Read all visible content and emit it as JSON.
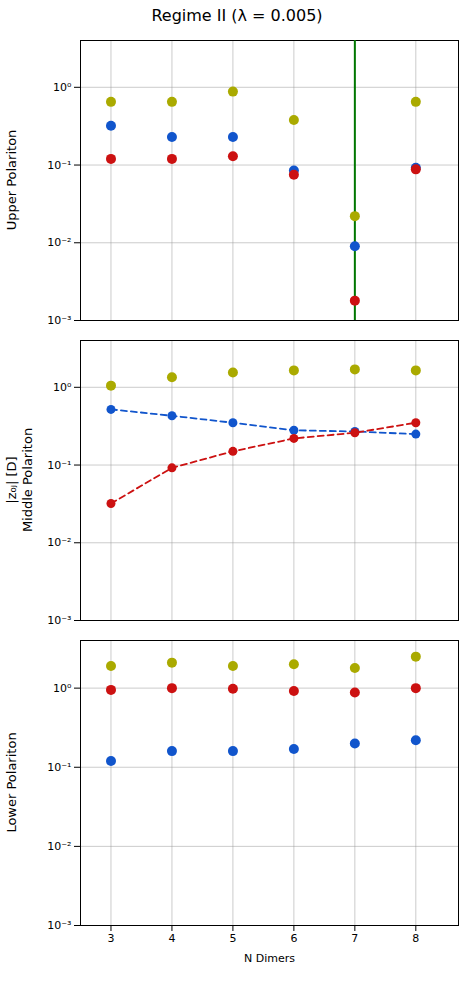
{
  "chart_data": [
    {
      "type": "scatter",
      "title": "Regime II (λ = 0.005)",
      "ylabel": "Upper Polariton",
      "x": [
        3,
        4,
        5,
        6,
        7,
        8
      ],
      "series": [
        {
          "type": "scatter",
          "marker": "o",
          "color": "#aaaa00",
          "values": [
            0.65,
            0.65,
            0.88,
            0.38,
            0.022,
            0.65
          ]
        },
        {
          "type": "scatter",
          "marker": "o",
          "color": "#1155cc",
          "values": [
            0.32,
            0.23,
            0.23,
            0.085,
            0.009,
            0.092
          ]
        },
        {
          "type": "scatter",
          "marker": "o",
          "color": "#cc1111",
          "values": [
            0.12,
            0.12,
            0.13,
            0.075,
            0.0018,
            0.088
          ]
        }
      ],
      "vlines": [
        {
          "x": 7,
          "color": "#007700"
        }
      ],
      "xlim": [
        2.5,
        8.7
      ],
      "xticks": [
        3,
        4,
        5,
        6,
        7,
        8
      ],
      "ylim": [
        0.001,
        4
      ],
      "yticks": [
        {
          "value": 0.001,
          "label": "10⁻³"
        },
        {
          "value": 0.01,
          "label": "10⁻²"
        },
        {
          "value": 0.1,
          "label": "10⁻¹"
        },
        {
          "value": 1,
          "label": "10⁰"
        }
      ],
      "log": "y",
      "grid": true,
      "tick_labels": "y"
    },
    {
      "type": "scatter",
      "ylabel": "|z₀ⱼ| [D]\nMiddle Polariton",
      "x": [
        3,
        4,
        5,
        6,
        7,
        8
      ],
      "series": [
        {
          "type": "scatter",
          "marker": "o",
          "color": "#aaaa00",
          "values": [
            1.05,
            1.35,
            1.55,
            1.65,
            1.7,
            1.65
          ]
        },
        {
          "type": "line",
          "marker": "o",
          "line_style": "dashed",
          "color": "#1155cc",
          "values": [
            0.52,
            0.43,
            0.35,
            0.28,
            0.27,
            0.25
          ]
        },
        {
          "type": "line",
          "marker": "o",
          "line_style": "dashed",
          "color": "#cc1111",
          "values": [
            0.032,
            0.092,
            0.15,
            0.22,
            0.26,
            0.35
          ]
        }
      ],
      "xlim": [
        2.5,
        8.7
      ],
      "xticks": [
        3,
        4,
        5,
        6,
        7,
        8
      ],
      "ylim": [
        0.001,
        4
      ],
      "yticks": [
        {
          "value": 0.001,
          "label": "10⁻³"
        },
        {
          "value": 0.01,
          "label": "10⁻²"
        },
        {
          "value": 0.1,
          "label": "10⁻¹"
        },
        {
          "value": 1,
          "label": "10⁰"
        }
      ],
      "log": "y",
      "grid": true,
      "tick_labels": "y"
    },
    {
      "type": "scatter",
      "ylabel": "Lower Polariton",
      "xlabel": "N Dimers",
      "x": [
        3,
        4,
        5,
        6,
        7,
        8
      ],
      "series": [
        {
          "type": "scatter",
          "marker": "o",
          "color": "#aaaa00",
          "values": [
            1.9,
            2.1,
            1.9,
            2.0,
            1.8,
            2.5
          ]
        },
        {
          "type": "scatter",
          "marker": "o",
          "color": "#1155cc",
          "values": [
            0.12,
            0.16,
            0.16,
            0.17,
            0.2,
            0.22
          ]
        },
        {
          "type": "scatter",
          "marker": "o",
          "color": "#cc1111",
          "values": [
            0.95,
            1.0,
            0.98,
            0.92,
            0.88,
            1.0
          ]
        }
      ],
      "xlim": [
        2.5,
        8.7
      ],
      "xticks": [
        3,
        4,
        5,
        6,
        7,
        8
      ],
      "ylim": [
        0.001,
        4
      ],
      "yticks": [
        {
          "value": 0.001,
          "label": "10⁻³"
        },
        {
          "value": 0.01,
          "label": "10⁻²"
        },
        {
          "value": 0.1,
          "label": "10⁻¹"
        },
        {
          "value": 1,
          "label": "10⁰"
        }
      ],
      "log": "y",
      "grid": true
    }
  ]
}
